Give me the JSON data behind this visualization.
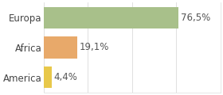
{
  "categories": [
    "America",
    "Africa",
    "Europa"
  ],
  "values": [
    4.4,
    19.1,
    76.5
  ],
  "labels": [
    "4,4%",
    "19,1%",
    "76,5%"
  ],
  "bar_colors": [
    "#e8c84a",
    "#e8a96a",
    "#a8c08a"
  ],
  "background_color": "#ffffff",
  "xlim": [
    0,
    100
  ],
  "label_fontsize": 8.5,
  "tick_fontsize": 8.5,
  "bar_height": 0.72
}
